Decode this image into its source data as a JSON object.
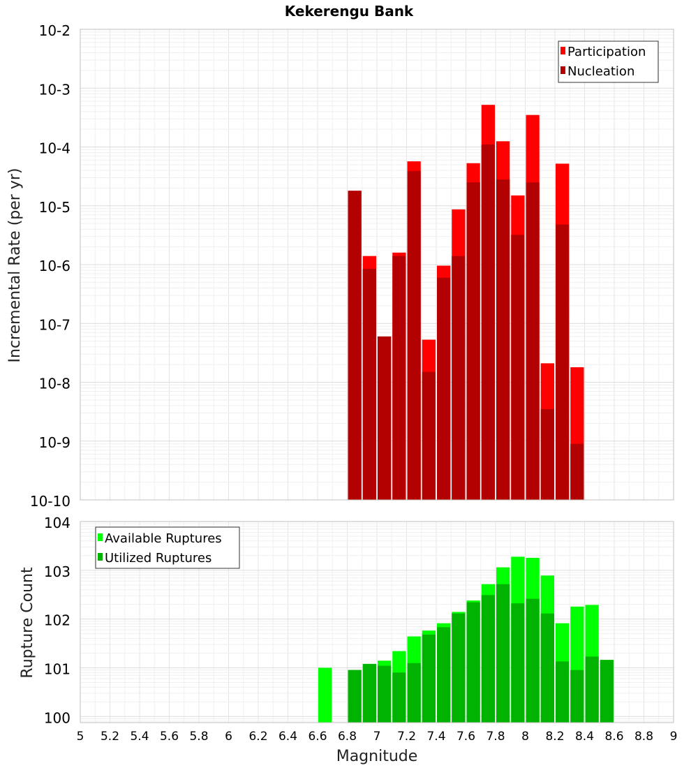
{
  "chart_data": [
    {
      "type": "bar",
      "title": "Kekerengu Bank",
      "ylabel": "Incremental Rate (per yr)",
      "xlabel": "",
      "xlim": [
        5,
        9
      ],
      "y_scale": "log",
      "ylim": [
        1e-10,
        0.01
      ],
      "y_tick_labels": [
        "10-10",
        "10-9",
        "10-8",
        "10-7",
        "10-6",
        "10-5",
        "10-4",
        "10-3",
        "10-2"
      ],
      "grid": true,
      "legend_position": "top-right",
      "legend": [
        "Participation",
        "Nucleation"
      ],
      "colors": {
        "Participation": "#ff0000",
        "Nucleation": "#b30000"
      },
      "x": [
        6.85,
        6.95,
        7.05,
        7.15,
        7.25,
        7.35,
        7.45,
        7.55,
        7.65,
        7.75,
        7.85,
        7.95,
        8.05,
        8.15,
        8.25,
        8.35
      ],
      "series": [
        {
          "name": "Participation",
          "values": [
            1.8e-05,
            1.4e-06,
            6e-08,
            1.6e-06,
            5.7e-05,
            5.3e-08,
            9.6e-07,
            8.7e-06,
            5.3e-05,
            0.00052,
            0.000125,
            1.5e-05,
            0.00035,
            2.1e-08,
            5.2e-05,
            1.8e-08
          ]
        },
        {
          "name": "Nucleation",
          "values": [
            1.8e-05,
            8.5e-07,
            6e-08,
            1.4e-06,
            3.9e-05,
            1.5e-08,
            6e-07,
            1.4e-06,
            2.5e-05,
            0.00011,
            2.8e-05,
            3.2e-06,
            2.5e-05,
            3.5e-09,
            4.8e-06,
            9e-10
          ]
        }
      ]
    },
    {
      "type": "bar",
      "title": "",
      "ylabel": "Rupture Count",
      "xlabel": "Magnitude",
      "xlim": [
        5,
        9
      ],
      "x_ticks": [
        "5",
        "5.2",
        "5.4",
        "5.6",
        "5.8",
        "6",
        "6.2",
        "6.4",
        "6.6",
        "6.8",
        "7",
        "7.2",
        "7.4",
        "7.6",
        "7.8",
        "8",
        "8.2",
        "8.4",
        "8.6",
        "8.8",
        "9"
      ],
      "y_scale": "log",
      "ylim": [
        0.75,
        10000.0
      ],
      "y_tick_labels": [
        "100",
        "101",
        "102",
        "103",
        "104"
      ],
      "grid": true,
      "legend_position": "top-left",
      "legend": [
        "Available Ruptures",
        "Utilized Ruptures"
      ],
      "colors": {
        "Available Ruptures": "#00ff00",
        "Utilized Ruptures": "#00b300"
      },
      "x": [
        6.65,
        6.85,
        6.95,
        7.05,
        7.15,
        7.25,
        7.35,
        7.45,
        7.55,
        7.65,
        7.75,
        7.85,
        7.95,
        8.05,
        8.15,
        8.25,
        8.35,
        8.45,
        8.55
      ],
      "series": [
        {
          "name": "Available Ruptures",
          "values": [
            10,
            9,
            12,
            14,
            22,
            44,
            58,
            82,
            140,
            240,
            520,
            1150,
            1900,
            1800,
            780,
            82,
            180,
            195,
            14.5
          ]
        },
        {
          "name": "Utilized Ruptures",
          "values": [
            0,
            9,
            12,
            11,
            8,
            12.5,
            48,
            68,
            130,
            220,
            310,
            520,
            210,
            260,
            130,
            13.5,
            9,
            17,
            14.5
          ]
        }
      ]
    }
  ]
}
